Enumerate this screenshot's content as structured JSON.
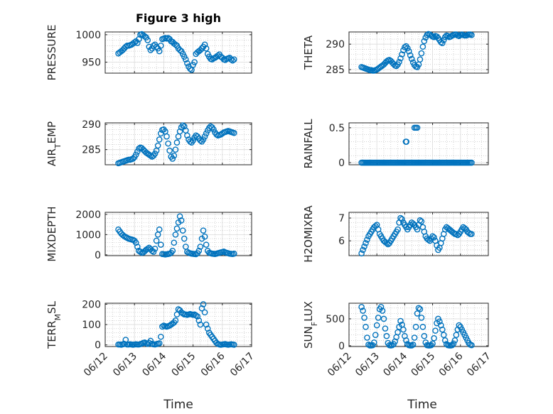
{
  "figure": {
    "title": "Figure 3 high"
  },
  "colors": {
    "marker": "#0072BD",
    "axis": "#262626",
    "grid": "#b7b7b7",
    "background": "#ffffff"
  },
  "chart_data": [
    {
      "type": "scatter",
      "ylabel": "PRESSURE",
      "ylim": [
        930,
        1005
      ],
      "yticks": [
        950,
        1000
      ],
      "x": [
        0.45,
        0.5,
        0.55,
        0.6,
        0.65,
        0.7,
        0.75,
        0.8,
        0.85,
        0.9,
        0.95,
        1.0,
        1.05,
        1.1,
        1.15,
        1.2,
        1.25,
        1.3,
        1.35,
        1.4,
        1.45,
        1.5,
        1.55,
        1.6,
        1.65,
        1.7,
        1.75,
        1.8,
        1.85,
        1.9,
        1.95,
        2.0,
        2.05,
        2.1,
        2.15,
        2.2,
        2.25,
        2.3,
        2.35,
        2.4,
        2.45,
        2.5,
        2.55,
        2.6,
        2.65,
        2.7,
        2.75,
        2.8,
        2.85,
        2.9,
        2.95,
        3.0,
        3.05,
        3.1,
        3.15,
        3.2,
        3.25,
        3.3,
        3.35,
        3.4,
        3.45,
        3.5,
        3.55,
        3.6,
        3.65,
        3.7,
        3.75,
        3.8,
        3.85,
        3.9,
        3.95,
        4.0,
        4.05,
        4.1,
        4.15,
        4.2,
        4.25,
        4.3,
        4.35,
        4.4
      ],
      "y": [
        966,
        968,
        970,
        972,
        975,
        978,
        980,
        980,
        981,
        982,
        984,
        986,
        988,
        985,
        992,
        1000,
        1001,
        999,
        997,
        995,
        990,
        978,
        972,
        975,
        980,
        982,
        978,
        975,
        970,
        980,
        992,
        993,
        994,
        993,
        994,
        992,
        988,
        987,
        984,
        982,
        980,
        975,
        972,
        970,
        965,
        960,
        955,
        948,
        942,
        938,
        936,
        945,
        950,
        965,
        968,
        970,
        972,
        975,
        978,
        982,
        975,
        965,
        960,
        956,
        955,
        957,
        958,
        960,
        962,
        964,
        960,
        958,
        955,
        954,
        956,
        957,
        958,
        955,
        953,
        955
      ]
    },
    {
      "type": "scatter",
      "ylabel": "THETA",
      "ylim": [
        284.3,
        292.4
      ],
      "yticks": [
        285,
        290
      ],
      "x": [
        0.45,
        0.5,
        0.55,
        0.6,
        0.65,
        0.7,
        0.75,
        0.8,
        0.85,
        0.9,
        0.95,
        1.0,
        1.05,
        1.1,
        1.15,
        1.2,
        1.25,
        1.3,
        1.35,
        1.4,
        1.45,
        1.5,
        1.55,
        1.6,
        1.65,
        1.7,
        1.75,
        1.8,
        1.85,
        1.9,
        1.95,
        2.0,
        2.05,
        2.1,
        2.15,
        2.2,
        2.25,
        2.3,
        2.35,
        2.4,
        2.45,
        2.5,
        2.55,
        2.6,
        2.65,
        2.7,
        2.75,
        2.8,
        2.85,
        2.9,
        2.95,
        3.0,
        3.05,
        3.1,
        3.15,
        3.2,
        3.25,
        3.3,
        3.35,
        3.4,
        3.45,
        3.5,
        3.55,
        3.6,
        3.65,
        3.7,
        3.75,
        3.8,
        3.85,
        3.9,
        3.95,
        4.0,
        4.05,
        4.1,
        4.15,
        4.2,
        4.25,
        4.3,
        4.35,
        4.4
      ],
      "y": [
        285.5,
        285.4,
        285.3,
        285.2,
        285.1,
        285.0,
        284.9,
        284.9,
        284.8,
        284.8,
        284.9,
        285.0,
        285.2,
        285.4,
        285.6,
        285.8,
        286.0,
        286.3,
        286.6,
        286.8,
        286.9,
        286.7,
        286.4,
        286.1,
        285.8,
        285.7,
        286.0,
        286.5,
        287.2,
        288.0,
        288.8,
        289.4,
        289.6,
        289.2,
        288.6,
        287.8,
        287.1,
        286.4,
        285.9,
        285.6,
        285.5,
        286.0,
        287.0,
        288.2,
        289.5,
        290.6,
        291.3,
        291.8,
        292.0,
        291.9,
        291.7,
        291.5,
        291.4,
        291.6,
        291.5,
        291.2,
        290.8,
        290.4,
        290.2,
        290.8,
        291.4,
        291.7,
        291.6,
        291.4,
        291.5,
        291.7,
        291.8,
        291.9,
        291.9,
        291.7,
        291.6,
        291.8,
        291.9,
        291.8,
        291.7,
        291.7,
        291.8,
        291.9,
        291.9,
        291.8
      ]
    },
    {
      "type": "scatter",
      "ylabel": "AIR_TEMP",
      "ylim": [
        282,
        290.3
      ],
      "yticks": [
        285,
        290
      ],
      "x": [
        0.45,
        0.5,
        0.55,
        0.6,
        0.65,
        0.7,
        0.75,
        0.8,
        0.85,
        0.9,
        0.95,
        1.0,
        1.05,
        1.1,
        1.15,
        1.2,
        1.25,
        1.3,
        1.35,
        1.4,
        1.45,
        1.5,
        1.55,
        1.6,
        1.65,
        1.7,
        1.75,
        1.8,
        1.85,
        1.9,
        1.95,
        2.0,
        2.05,
        2.1,
        2.15,
        2.2,
        2.25,
        2.3,
        2.35,
        2.4,
        2.45,
        2.5,
        2.55,
        2.6,
        2.65,
        2.7,
        2.75,
        2.8,
        2.85,
        2.9,
        2.95,
        3.0,
        3.05,
        3.1,
        3.15,
        3.2,
        3.25,
        3.3,
        3.35,
        3.4,
        3.45,
        3.5,
        3.55,
        3.6,
        3.65,
        3.7,
        3.75,
        3.8,
        3.85,
        3.9,
        3.95,
        4.0,
        4.05,
        4.1,
        4.15,
        4.2,
        4.25,
        4.3,
        4.35,
        4.4
      ],
      "y": [
        282.3,
        282.4,
        282.5,
        282.6,
        282.7,
        282.8,
        282.9,
        283.0,
        283.0,
        283.1,
        283.2,
        283.5,
        284.0,
        284.6,
        285.2,
        285.4,
        285.3,
        285.0,
        284.7,
        284.4,
        284.2,
        284.0,
        283.8,
        283.6,
        283.8,
        284.2,
        284.8,
        285.8,
        287.0,
        288.2,
        288.9,
        289.0,
        288.6,
        287.6,
        286.2,
        284.8,
        283.6,
        283.2,
        283.8,
        285.0,
        286.4,
        287.6,
        288.6,
        289.4,
        289.8,
        289.6,
        288.8,
        287.8,
        287.0,
        286.6,
        286.4,
        286.8,
        287.4,
        287.8,
        287.6,
        287.2,
        286.8,
        286.6,
        287.0,
        287.6,
        288.2,
        288.8,
        289.3,
        289.6,
        289.4,
        289.0,
        288.4,
        288.0,
        287.8,
        287.9,
        288.0,
        288.2,
        288.4,
        288.5,
        288.6,
        288.7,
        288.6,
        288.5,
        288.4,
        288.3
      ]
    },
    {
      "type": "scatter",
      "ylabel": "RAINFALL",
      "ylim": [
        -0.03,
        0.57
      ],
      "yticks": [
        0,
        0.5
      ],
      "x": [
        0.45,
        0.5,
        0.55,
        0.6,
        0.65,
        0.7,
        0.75,
        0.8,
        0.85,
        0.9,
        0.95,
        1.0,
        1.05,
        1.1,
        1.15,
        1.2,
        1.25,
        1.3,
        1.35,
        1.4,
        1.45,
        1.5,
        1.55,
        1.6,
        1.65,
        1.7,
        1.75,
        1.8,
        1.85,
        1.9,
        1.95,
        2.0,
        2.05,
        2.1,
        2.15,
        2.2,
        2.25,
        2.3,
        2.35,
        2.4,
        2.45,
        2.5,
        2.55,
        2.6,
        2.65,
        2.7,
        2.75,
        2.8,
        2.85,
        2.9,
        2.95,
        3.0,
        3.05,
        3.1,
        3.15,
        3.2,
        3.25,
        3.3,
        3.35,
        3.4,
        3.45,
        3.5,
        3.55,
        3.6,
        3.65,
        3.7,
        3.75,
        3.8,
        3.85,
        3.9,
        3.95,
        4.0,
        4.05,
        4.1,
        4.15,
        4.2,
        4.25,
        4.3,
        4.35,
        4.4,
        2.04,
        2.06,
        2.35,
        2.4,
        2.45
      ],
      "y": [
        0,
        0,
        0,
        0,
        0,
        0,
        0,
        0,
        0,
        0,
        0,
        0,
        0,
        0,
        0,
        0,
        0,
        0,
        0,
        0,
        0,
        0,
        0,
        0,
        0,
        0,
        0,
        0,
        0,
        0,
        0,
        0,
        0,
        0,
        0,
        0,
        0,
        0,
        0,
        0,
        0,
        0,
        0,
        0,
        0,
        0,
        0,
        0,
        0,
        0,
        0,
        0,
        0,
        0,
        0,
        0,
        0,
        0,
        0,
        0,
        0,
        0,
        0,
        0,
        0,
        0,
        0,
        0,
        0,
        0,
        0,
        0,
        0,
        0,
        0,
        0,
        0,
        0,
        0,
        0,
        0.3,
        0.3,
        0.5,
        0.5,
        0.5
      ]
    },
    {
      "type": "scatter",
      "ylabel": "MIXDEPTH",
      "ylim": [
        -40,
        2100
      ],
      "yticks": [
        0,
        1000,
        2000
      ],
      "x": [
        0.45,
        0.5,
        0.55,
        0.6,
        0.65,
        0.7,
        0.75,
        0.8,
        0.85,
        0.9,
        0.95,
        1.0,
        1.05,
        1.1,
        1.15,
        1.2,
        1.25,
        1.3,
        1.35,
        1.4,
        1.45,
        1.5,
        1.55,
        1.6,
        1.65,
        1.7,
        1.75,
        1.8,
        1.85,
        1.9,
        1.95,
        2.0,
        2.05,
        2.1,
        2.15,
        2.2,
        2.25,
        2.3,
        2.35,
        2.4,
        2.45,
        2.5,
        2.55,
        2.6,
        2.65,
        2.7,
        2.75,
        2.8,
        2.85,
        2.9,
        2.95,
        3.0,
        3.05,
        3.1,
        3.15,
        3.2,
        3.25,
        3.3,
        3.35,
        3.4,
        3.45,
        3.5,
        3.55,
        3.6,
        3.65,
        3.7,
        3.75,
        3.8,
        3.85,
        3.9,
        3.95,
        4.0,
        4.05,
        4.1,
        4.15,
        4.2,
        4.25,
        4.3,
        4.35,
        4.4
      ],
      "y": [
        1250,
        1150,
        1050,
        980,
        920,
        880,
        840,
        800,
        780,
        760,
        740,
        700,
        600,
        400,
        200,
        150,
        100,
        120,
        180,
        250,
        300,
        350,
        280,
        200,
        150,
        300,
        700,
        1000,
        1250,
        500,
        40,
        30,
        20,
        30,
        40,
        60,
        100,
        200,
        600,
        1000,
        1300,
        1600,
        1900,
        1700,
        1200,
        800,
        400,
        150,
        100,
        80,
        60,
        50,
        40,
        30,
        80,
        200,
        400,
        800,
        1200,
        900,
        500,
        200,
        100,
        80,
        60,
        50,
        40,
        60,
        80,
        100,
        120,
        140,
        160,
        120,
        100,
        80,
        60,
        50,
        40,
        60
      ]
    },
    {
      "type": "scatter",
      "ylabel": "H2OMIXRA",
      "ylim": [
        5.35,
        7.25
      ],
      "yticks": [
        6,
        7
      ],
      "x": [
        0.45,
        0.5,
        0.55,
        0.6,
        0.65,
        0.7,
        0.75,
        0.8,
        0.85,
        0.9,
        0.95,
        1.0,
        1.05,
        1.1,
        1.15,
        1.2,
        1.25,
        1.3,
        1.35,
        1.4,
        1.45,
        1.5,
        1.55,
        1.6,
        1.65,
        1.7,
        1.75,
        1.8,
        1.85,
        1.9,
        1.95,
        2.0,
        2.05,
        2.1,
        2.15,
        2.2,
        2.25,
        2.3,
        2.35,
        2.4,
        2.45,
        2.5,
        2.55,
        2.6,
        2.65,
        2.7,
        2.75,
        2.8,
        2.85,
        2.9,
        2.95,
        3.0,
        3.05,
        3.1,
        3.15,
        3.2,
        3.25,
        3.3,
        3.35,
        3.4,
        3.45,
        3.5,
        3.55,
        3.6,
        3.65,
        3.7,
        3.75,
        3.8,
        3.85,
        3.9,
        3.95,
        4.0,
        4.05,
        4.1,
        4.15,
        4.2,
        4.25,
        4.3,
        4.35,
        4.4
      ],
      "y": [
        5.45,
        5.6,
        5.75,
        5.9,
        6.05,
        6.2,
        6.3,
        6.4,
        6.5,
        6.6,
        6.65,
        6.7,
        6.5,
        6.3,
        6.2,
        6.1,
        6.0,
        5.95,
        5.9,
        5.85,
        5.9,
        6.0,
        6.1,
        6.2,
        6.3,
        6.4,
        6.5,
        6.8,
        7.0,
        6.95,
        6.8,
        6.7,
        6.6,
        6.5,
        6.6,
        6.7,
        6.8,
        6.75,
        6.7,
        6.6,
        6.5,
        6.7,
        6.9,
        6.85,
        6.6,
        6.4,
        6.2,
        6.1,
        6.05,
        6.0,
        6.1,
        6.2,
        6.15,
        6.0,
        5.8,
        5.6,
        5.7,
        5.9,
        6.1,
        6.3,
        6.5,
        6.6,
        6.55,
        6.5,
        6.45,
        6.4,
        6.35,
        6.3,
        6.3,
        6.25,
        6.3,
        6.4,
        6.5,
        6.6,
        6.55,
        6.5,
        6.4,
        6.35,
        6.3,
        6.3
      ]
    },
    {
      "type": "scatter",
      "ylabel": "TERR_MSL",
      "ylim": [
        -8,
        205
      ],
      "yticks": [
        0,
        100,
        200
      ],
      "x": [
        0.45,
        0.5,
        0.55,
        0.6,
        0.65,
        0.7,
        0.75,
        0.8,
        0.85,
        0.9,
        0.95,
        1.0,
        1.05,
        1.1,
        1.15,
        1.2,
        1.25,
        1.3,
        1.35,
        1.4,
        1.45,
        1.5,
        1.55,
        1.6,
        1.65,
        1.7,
        1.75,
        1.8,
        1.85,
        1.9,
        1.95,
        2.0,
        2.05,
        2.1,
        2.15,
        2.2,
        2.25,
        2.3,
        2.35,
        2.4,
        2.45,
        2.5,
        2.55,
        2.6,
        2.65,
        2.7,
        2.75,
        2.8,
        2.85,
        2.9,
        2.95,
        3.0,
        3.05,
        3.1,
        3.15,
        3.2,
        3.25,
        3.3,
        3.35,
        3.4,
        3.45,
        3.5,
        3.55,
        3.6,
        3.65,
        3.7,
        3.75,
        3.8,
        3.85,
        3.9,
        3.95,
        4.0,
        4.05,
        4.1,
        4.15,
        4.2,
        4.25,
        4.3,
        4.35,
        4.4
      ],
      "y": [
        2,
        2,
        1,
        3,
        5,
        25,
        2,
        2,
        3,
        2,
        1,
        2,
        3,
        2,
        2,
        4,
        6,
        10,
        12,
        8,
        5,
        10,
        20,
        5,
        3,
        2,
        4,
        6,
        8,
        40,
        90,
        95,
        92,
        90,
        92,
        95,
        100,
        105,
        110,
        120,
        150,
        175,
        170,
        160,
        155,
        150,
        150,
        148,
        150,
        152,
        150,
        148,
        150,
        145,
        140,
        120,
        100,
        180,
        200,
        160,
        100,
        80,
        60,
        50,
        40,
        30,
        20,
        10,
        5,
        2,
        1,
        2,
        3,
        4,
        2,
        1,
        2,
        3,
        2,
        1
      ]
    },
    {
      "type": "scatter",
      "ylabel": "SUN_FLUX",
      "ylim": [
        -15,
        790
      ],
      "yticks": [
        0,
        500
      ],
      "x": [
        0.45,
        0.5,
        0.55,
        0.6,
        0.65,
        0.7,
        0.75,
        0.8,
        0.85,
        0.9,
        0.95,
        1.0,
        1.05,
        1.1,
        1.15,
        1.2,
        1.25,
        1.3,
        1.35,
        1.4,
        1.45,
        1.5,
        1.55,
        1.6,
        1.65,
        1.7,
        1.75,
        1.8,
        1.85,
        1.9,
        1.95,
        2.0,
        2.05,
        2.1,
        2.15,
        2.2,
        2.25,
        2.3,
        2.35,
        2.4,
        2.45,
        2.5,
        2.55,
        2.6,
        2.65,
        2.7,
        2.75,
        2.8,
        2.85,
        2.9,
        2.95,
        3.0,
        3.05,
        3.1,
        3.15,
        3.2,
        3.25,
        3.3,
        3.35,
        3.4,
        3.45,
        3.5,
        3.55,
        3.6,
        3.65,
        3.7,
        3.75,
        3.8,
        3.85,
        3.9,
        3.95,
        4.0,
        4.05,
        4.1,
        4.15,
        4.2,
        4.25,
        4.3,
        4.35,
        4.4
      ],
      "y": [
        720,
        650,
        520,
        350,
        150,
        20,
        5,
        5,
        10,
        60,
        200,
        380,
        520,
        680,
        720,
        650,
        500,
        320,
        180,
        50,
        10,
        5,
        10,
        30,
        80,
        160,
        250,
        350,
        460,
        390,
        300,
        180,
        100,
        30,
        10,
        5,
        5,
        20,
        150,
        350,
        600,
        700,
        680,
        520,
        350,
        180,
        60,
        10,
        5,
        5,
        10,
        40,
        140,
        280,
        420,
        500,
        450,
        380,
        300,
        200,
        100,
        30,
        10,
        5,
        5,
        10,
        40,
        100,
        200,
        300,
        380,
        350,
        300,
        250,
        200,
        150,
        100,
        50,
        20,
        10
      ]
    }
  ],
  "x_axis": {
    "tick_labels": [
      "06/12",
      "06/13",
      "06/14",
      "06/15",
      "06/16",
      "06/17"
    ],
    "label": "Time"
  }
}
